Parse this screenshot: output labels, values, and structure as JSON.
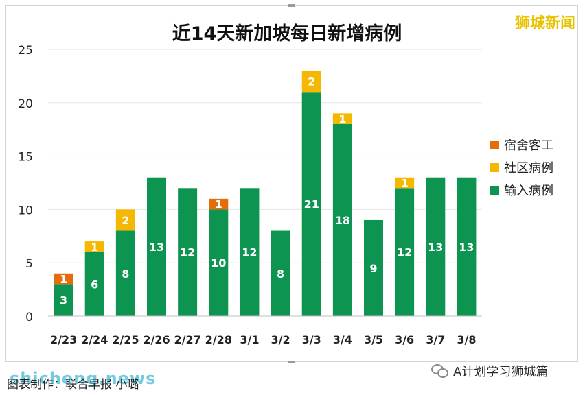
{
  "brand": "狮城新闻",
  "credit": "图表制作：联合早报 小璐",
  "footer_account": "A计划学习狮城篇",
  "watermark": "shicheng.news",
  "chart_data": {
    "type": "bar",
    "stacked": true,
    "title": "近14天新加坡每日新增病例",
    "xlabel": "",
    "ylabel": "",
    "ylim": [
      0,
      25
    ],
    "yticks": [
      0,
      5,
      10,
      15,
      20,
      25
    ],
    "grid": true,
    "legend_position": "right",
    "categories": [
      "2/23",
      "2/24",
      "2/25",
      "2/26",
      "2/27",
      "2/28",
      "3/1",
      "3/2",
      "3/3",
      "3/4",
      "3/5",
      "3/6",
      "3/7",
      "3/8"
    ],
    "series": [
      {
        "name": "输入病例",
        "color": "#0d9450",
        "values": [
          3,
          6,
          8,
          13,
          12,
          10,
          12,
          8,
          21,
          18,
          9,
          12,
          13,
          13
        ]
      },
      {
        "name": "社区病例",
        "color": "#f5b800",
        "values": [
          0,
          1,
          2,
          0,
          0,
          0,
          0,
          0,
          2,
          1,
          0,
          1,
          0,
          0
        ]
      },
      {
        "name": "宿舍客工",
        "color": "#e46c0a",
        "values": [
          1,
          0,
          0,
          0,
          0,
          1,
          0,
          0,
          0,
          0,
          0,
          0,
          0,
          0
        ]
      }
    ],
    "legend_order": [
      2,
      1,
      0
    ]
  }
}
